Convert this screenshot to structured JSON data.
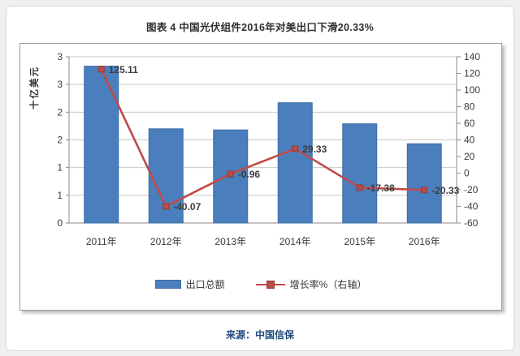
{
  "page": {
    "title": "图表 4 中国光伏组件2016年对美出口下滑20.33%",
    "source": "来源：中国信保"
  },
  "legend": {
    "bar_label": "出口总额",
    "line_label": "增长率%（右轴）"
  },
  "chart_data": {
    "type": "combo-bar-line",
    "title": "图表 4 中国光伏组件2016年对美出口下滑20.33%",
    "categories": [
      "2011年",
      "2012年",
      "2013年",
      "2014年",
      "2015年",
      "2016年"
    ],
    "series": [
      {
        "name": "出口总额",
        "type": "bar",
        "axis": "left",
        "values": [
          2.83,
          1.7,
          1.68,
          2.17,
          1.79,
          1.43
        ]
      },
      {
        "name": "增长率%（右轴）",
        "type": "line",
        "axis": "right",
        "values": [
          125.11,
          -40.07,
          -0.96,
          29.33,
          -17.38,
          -20.33
        ],
        "point_labels": [
          "125.11",
          "-40.07",
          "-0.96",
          "29.33",
          "-17.38",
          "-20.33"
        ]
      }
    ],
    "left_axis": {
      "title": "十亿美元",
      "min": 0,
      "max": 3,
      "tick_labels_top_to_bottom": [
        "3",
        "3",
        "2",
        "2",
        "1",
        "1",
        "0"
      ]
    },
    "right_axis": {
      "min": -60,
      "max": 140,
      "step": 20,
      "tick_labels_top_to_bottom": [
        "140",
        "120",
        "100",
        "80",
        "60",
        "40",
        "20",
        "0",
        "-20",
        "-40",
        "-60"
      ]
    },
    "grid": true,
    "legend_position": "bottom"
  },
  "colors": {
    "bar": "#4a7ebc",
    "bar_border": "#3d6da8",
    "line": "#be4b48",
    "marker_border": "#8e3b38",
    "grid": "#c9c9c9",
    "axis": "#8a8a8a",
    "source_text": "#1f497d"
  }
}
